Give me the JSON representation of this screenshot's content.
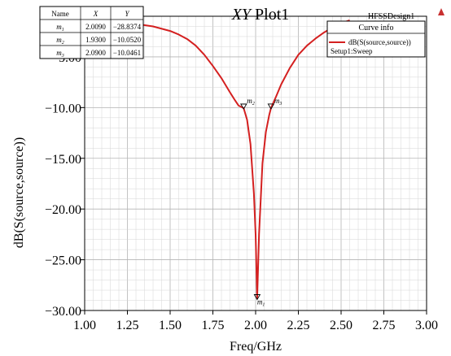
{
  "chart_data": {
    "type": "line",
    "title_prefix": "XY",
    "title_suffix": "Plot1",
    "design_name": "HFSSDesign1",
    "xlabel": "Freq/GHz",
    "ylabel": "dB(S(source,source))",
    "xlim": [
      1.0,
      3.0
    ],
    "ylim": [
      -30.0,
      -1.0
    ],
    "x_ticks": [
      1.0,
      1.25,
      1.5,
      1.75,
      2.0,
      2.25,
      2.5,
      2.75,
      3.0
    ],
    "x_tick_labels": [
      "1.00",
      "1.25",
      "1.50",
      "1.75",
      "2.00",
      "2.25",
      "2.50",
      "2.75",
      "3.00"
    ],
    "y_ticks": [
      -5.0,
      -10.0,
      -15.0,
      -20.0,
      -25.0,
      -30.0
    ],
    "y_tick_labels": [
      "−5.00",
      "−10.00",
      "−15.00",
      "−20.00",
      "−25.00",
      "−30.00"
    ],
    "grid": true,
    "series": [
      {
        "name": "dB(S(source,source))",
        "setup": "Setup1:Sweep",
        "color": "#d42020",
        "x": [
          1.0,
          1.1,
          1.2,
          1.3,
          1.4,
          1.5,
          1.55,
          1.6,
          1.65,
          1.7,
          1.75,
          1.8,
          1.85,
          1.88,
          1.9,
          1.93,
          1.95,
          1.97,
          1.99,
          2.0,
          2.009,
          2.02,
          2.04,
          2.06,
          2.08,
          2.09,
          2.12,
          2.15,
          2.2,
          2.25,
          2.3,
          2.35,
          2.4,
          2.45,
          2.5,
          2.55
        ],
        "y": [
          -1.3,
          -1.4,
          -1.55,
          -1.75,
          -2.0,
          -2.45,
          -2.8,
          -3.25,
          -3.9,
          -4.8,
          -5.9,
          -7.1,
          -8.5,
          -9.3,
          -9.8,
          -10.052,
          -11.2,
          -13.6,
          -18.5,
          -22.5,
          -28.8374,
          -22.5,
          -15.5,
          -12.4,
          -10.7,
          -10.0461,
          -8.9,
          -7.7,
          -6.1,
          -4.8,
          -3.9,
          -3.2,
          -2.6,
          -2.1,
          -1.7,
          -1.4
        ]
      }
    ],
    "markers": [
      {
        "name": "m",
        "sub": "1",
        "x": 2.009,
        "y": -28.8374,
        "x_label": "2.0090",
        "y_label": "−28.8374"
      },
      {
        "name": "m",
        "sub": "2",
        "x": 1.93,
        "y": -10.052,
        "x_label": "1.9300",
        "y_label": "−10.0520"
      },
      {
        "name": "m",
        "sub": "3",
        "x": 2.09,
        "y": -10.0461,
        "x_label": "2.0900",
        "y_label": "−10.0461"
      }
    ],
    "marker_table": {
      "headers": [
        "Name",
        "X",
        "Y"
      ]
    },
    "curve_info": {
      "title": "Curve info",
      "entry": "dB(S(source,source))",
      "setup": "Setup1:Sweep"
    },
    "logo_color": "#c83030"
  }
}
